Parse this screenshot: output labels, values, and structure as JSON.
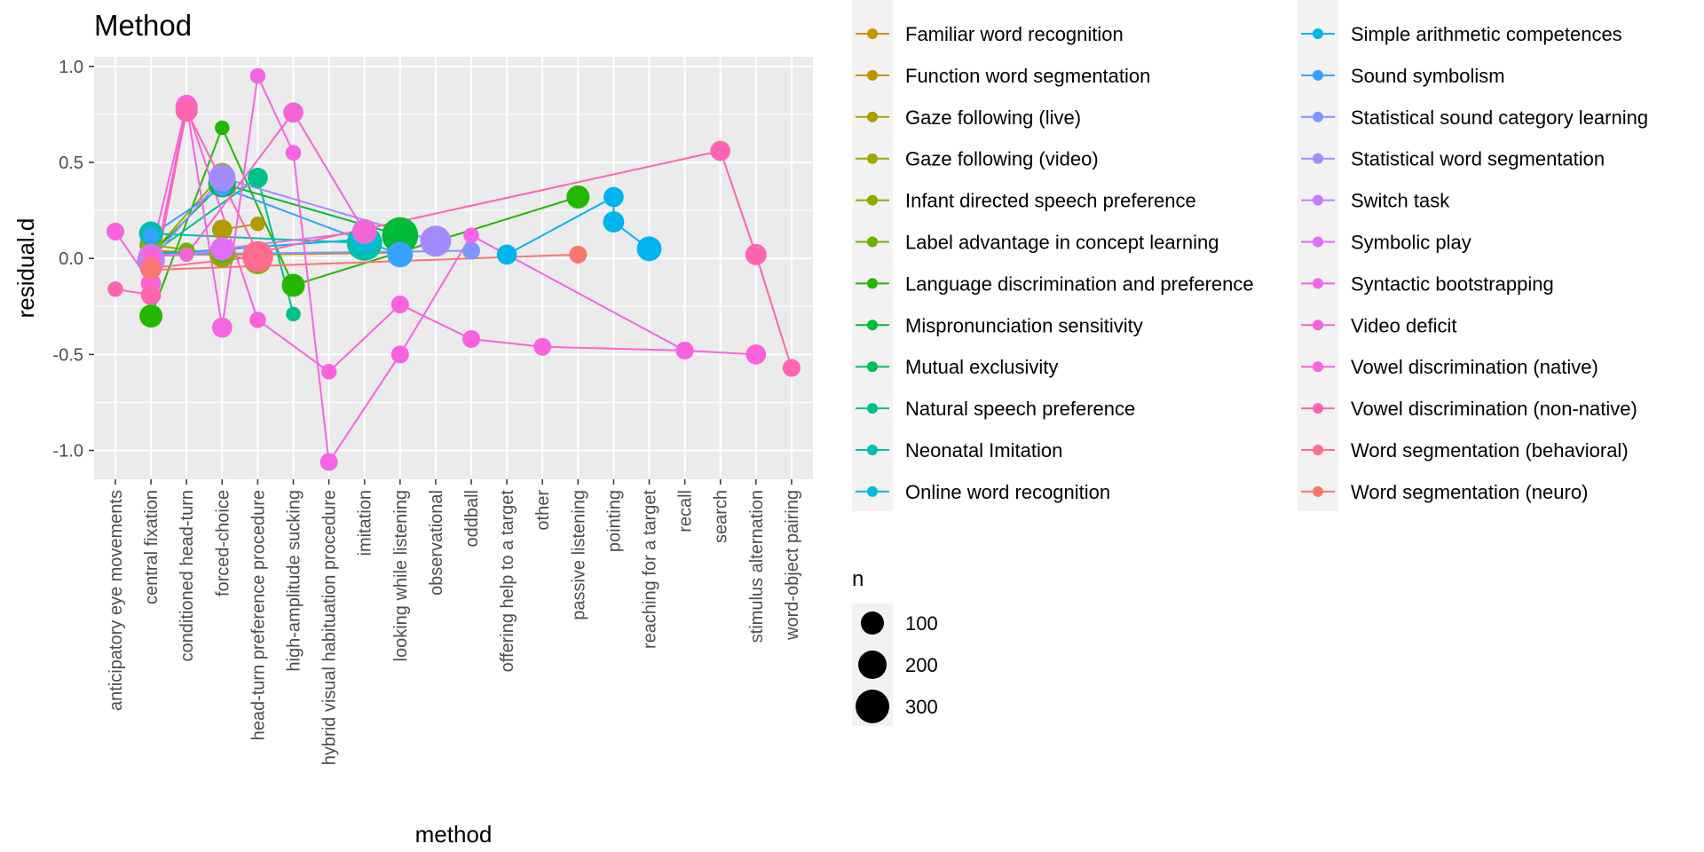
{
  "chart_data": {
    "type": "line",
    "title": "Method",
    "xlabel": "method",
    "ylabel": "residual.d",
    "ylim": [
      -1.15,
      1.05
    ],
    "yticks": [
      -1.0,
      -0.5,
      0.0,
      0.5,
      1.0
    ],
    "ytick_labels": [
      "-1.0",
      "-0.5",
      "0.0",
      "0.5",
      "1.0"
    ],
    "grid": true,
    "legend_placement": "right",
    "categories": [
      "anticipatory eye movements",
      "central fixation",
      "conditioned head-turn",
      "forced-choice",
      "head-turn preference procedure",
      "high-amplitude sucking",
      "hybrid visual habituation procedure",
      "imitation",
      "looking while listening",
      "observational",
      "oddball",
      "offering help to a target",
      "other",
      "passive listening",
      "pointing",
      "reaching for a target",
      "recall",
      "search",
      "stimulus alternation",
      "word-object pairing"
    ],
    "series": [
      {
        "name": "Familiar word recognition",
        "color": "#C99400",
        "points": [
          [
            2,
            0.02,
            60
          ],
          [
            5,
            0.02,
            80
          ],
          [
            9,
            0.03,
            100
          ]
        ]
      },
      {
        "name": "Function word segmentation",
        "color": "#BE9300",
        "points": [
          [
            2,
            0.04,
            40
          ],
          [
            5,
            0.02,
            60
          ]
        ]
      },
      {
        "name": "Gaze following (live)",
        "color": "#B29B00",
        "points": [
          [
            4,
            0.15,
            60
          ],
          [
            5,
            0.18,
            20
          ]
        ]
      },
      {
        "name": "Gaze following (video)",
        "color": "#A0A800",
        "points": [
          [
            2,
            0.02,
            30
          ],
          [
            4,
            0.44,
            80
          ]
        ]
      },
      {
        "name": "Infant directed speech preference",
        "color": "#8CAB00",
        "points": [
          [
            2,
            0.07,
            90
          ],
          [
            4,
            0.02,
            120
          ],
          [
            5,
            -0.01,
            150
          ]
        ]
      },
      {
        "name": "Label advantage in concept learning",
        "color": "#6EB100",
        "points": [
          [
            3,
            0.04,
            30
          ],
          [
            4,
            0.02,
            40
          ]
        ]
      },
      {
        "name": "Language discrimination and preference",
        "color": "#24B700",
        "points": [
          [
            2,
            -0.3,
            90
          ],
          [
            4,
            0.68,
            20
          ],
          [
            6,
            -0.14,
            90
          ],
          [
            14,
            0.32,
            90
          ]
        ]
      },
      {
        "name": "Mispronunciation sensitivity",
        "color": "#00BA38",
        "points": [
          [
            2,
            0.02,
            60
          ],
          [
            4,
            0.39,
            150
          ],
          [
            9,
            0.12,
            300
          ]
        ]
      },
      {
        "name": "Mutual exclusivity",
        "color": "#00BD5C",
        "points": [
          [
            2,
            0.03,
            40
          ],
          [
            4,
            0.03,
            40
          ]
        ]
      },
      {
        "name": "Natural speech preference",
        "color": "#00C08B",
        "points": [
          [
            2,
            0.02,
            30
          ],
          [
            5,
            0.42,
            60
          ],
          [
            6,
            -0.29,
            20
          ]
        ]
      },
      {
        "name": "Neonatal Imitation",
        "color": "#00BFAB",
        "points": [
          [
            2,
            0.13,
            100
          ],
          [
            8,
            0.08,
            280
          ]
        ]
      },
      {
        "name": "Online word recognition",
        "color": "#00BCD8",
        "points": [
          [
            2,
            0.02,
            40
          ],
          [
            8,
            0.1,
            150
          ]
        ]
      },
      {
        "name": "Simple arithmetic competences",
        "color": "#00B4EF",
        "points": [
          [
            12,
            0.02,
            60
          ],
          [
            15,
            0.32,
            60
          ],
          [
            15,
            0.19,
            70
          ],
          [
            16,
            0.05,
            110
          ]
        ]
      },
      {
        "name": "Sound symbolism",
        "color": "#35A2FF",
        "points": [
          [
            2,
            0.12,
            30
          ],
          [
            4,
            0.37,
            40
          ],
          [
            9,
            0.02,
            120
          ]
        ]
      },
      {
        "name": "Statistical sound category learning",
        "color": "#7F96FF",
        "points": [
          [
            2,
            0.02,
            40
          ],
          [
            11,
            0.04,
            40
          ]
        ]
      },
      {
        "name": "Statistical word segmentation",
        "color": "#A58AFF",
        "points": [
          [
            2,
            -0.01,
            150
          ],
          [
            4,
            0.42,
            140
          ],
          [
            10,
            0.09,
            200
          ]
        ]
      },
      {
        "name": "Switch task",
        "color": "#C77CFF",
        "points": [
          [
            2,
            0.01,
            120
          ],
          [
            4,
            0.04,
            60
          ]
        ]
      },
      {
        "name": "Symbolic play",
        "color": "#E26EF7",
        "points": [
          [
            4,
            0.05,
            90
          ],
          [
            8,
            0.14,
            110
          ]
        ]
      },
      {
        "name": "Syntactic bootstrapping",
        "color": "#F564E3",
        "points": [
          [
            2,
            0.02,
            40
          ],
          [
            3,
            0.8,
            60
          ],
          [
            4,
            -0.36,
            60
          ],
          [
            5,
            0.95,
            25
          ],
          [
            6,
            0.55,
            25
          ],
          [
            7,
            -1.06,
            40
          ],
          [
            9,
            -0.5,
            40
          ],
          [
            11,
            0.12,
            25
          ],
          [
            17,
            -0.48,
            40
          ]
        ]
      },
      {
        "name": "Video deficit",
        "color": "#F365D4",
        "points": [
          [
            2,
            0.01,
            30
          ],
          [
            3,
            0.02,
            20
          ],
          [
            6,
            0.76,
            60
          ],
          [
            8,
            0.14,
            90
          ]
        ]
      },
      {
        "name": "Vowel discrimination (native)",
        "color": "#FA62DB",
        "points": [
          [
            1,
            0.14,
            40
          ],
          [
            2,
            -0.13,
            60
          ],
          [
            3,
            0.79,
            80
          ],
          [
            5,
            -0.32,
            30
          ],
          [
            7,
            -0.59,
            25
          ],
          [
            9,
            -0.24,
            40
          ],
          [
            11,
            -0.42,
            40
          ],
          [
            13,
            -0.46,
            40
          ],
          [
            17,
            -0.48,
            40
          ],
          [
            19,
            -0.5,
            60
          ]
        ]
      },
      {
        "name": "Vowel discrimination (non-native)",
        "color": "#FF64B0",
        "points": [
          [
            1,
            -0.16,
            25
          ],
          [
            2,
            -0.19,
            60
          ],
          [
            3,
            0.77,
            80
          ],
          [
            5,
            0.03,
            60
          ],
          [
            18,
            0.56,
            60
          ],
          [
            19,
            0.02,
            70
          ],
          [
            20,
            -0.57,
            40
          ]
        ]
      },
      {
        "name": "Word segmentation (behavioral)",
        "color": "#FF6C91",
        "points": [
          [
            2,
            -0.05,
            80
          ],
          [
            5,
            0.01,
            200
          ]
        ]
      },
      {
        "name": "Word segmentation (neuro)",
        "color": "#F8766D",
        "points": [
          [
            2,
            -0.06,
            50
          ],
          [
            14,
            0.02,
            40
          ]
        ]
      }
    ],
    "size_legend": {
      "title": "n",
      "labels": [
        "100",
        "200",
        "300"
      ],
      "values": [
        100,
        200,
        300
      ]
    }
  },
  "legend": {
    "col1": [
      "Familiar word recognition",
      "Function word segmentation",
      "Gaze following (live)",
      "Gaze following (video)",
      "Infant directed speech preference",
      "Label advantage in concept learning",
      "Language discrimination and preference",
      "Mispronunciation sensitivity",
      "Mutual exclusivity",
      "Natural speech preference",
      "Neonatal Imitation",
      "Online word recognition"
    ],
    "col2": [
      "Simple arithmetic competences",
      "Sound symbolism",
      "Statistical sound category learning",
      "Statistical word segmentation",
      "Switch task",
      "Symbolic play",
      "Syntactic bootstrapping",
      "Video deficit",
      "Vowel discrimination (native)",
      "Vowel discrimination (non-native)",
      "Word segmentation (behavioral)",
      "Word segmentation (neuro)"
    ],
    "col1_colors": [
      "#C99400",
      "#BE9300",
      "#B29B00",
      "#A0A800",
      "#8CAB00",
      "#6EB100",
      "#24B700",
      "#00BA38",
      "#00BD5C",
      "#00C08B",
      "#00BFAB",
      "#00BCD8"
    ],
    "col2_colors": [
      "#00B4EF",
      "#35A2FF",
      "#7F96FF",
      "#A58AFF",
      "#C77CFF",
      "#E26EF7",
      "#F564E3",
      "#F365D4",
      "#FA62DB",
      "#FF64B0",
      "#FF6C91",
      "#F8766D"
    ]
  }
}
